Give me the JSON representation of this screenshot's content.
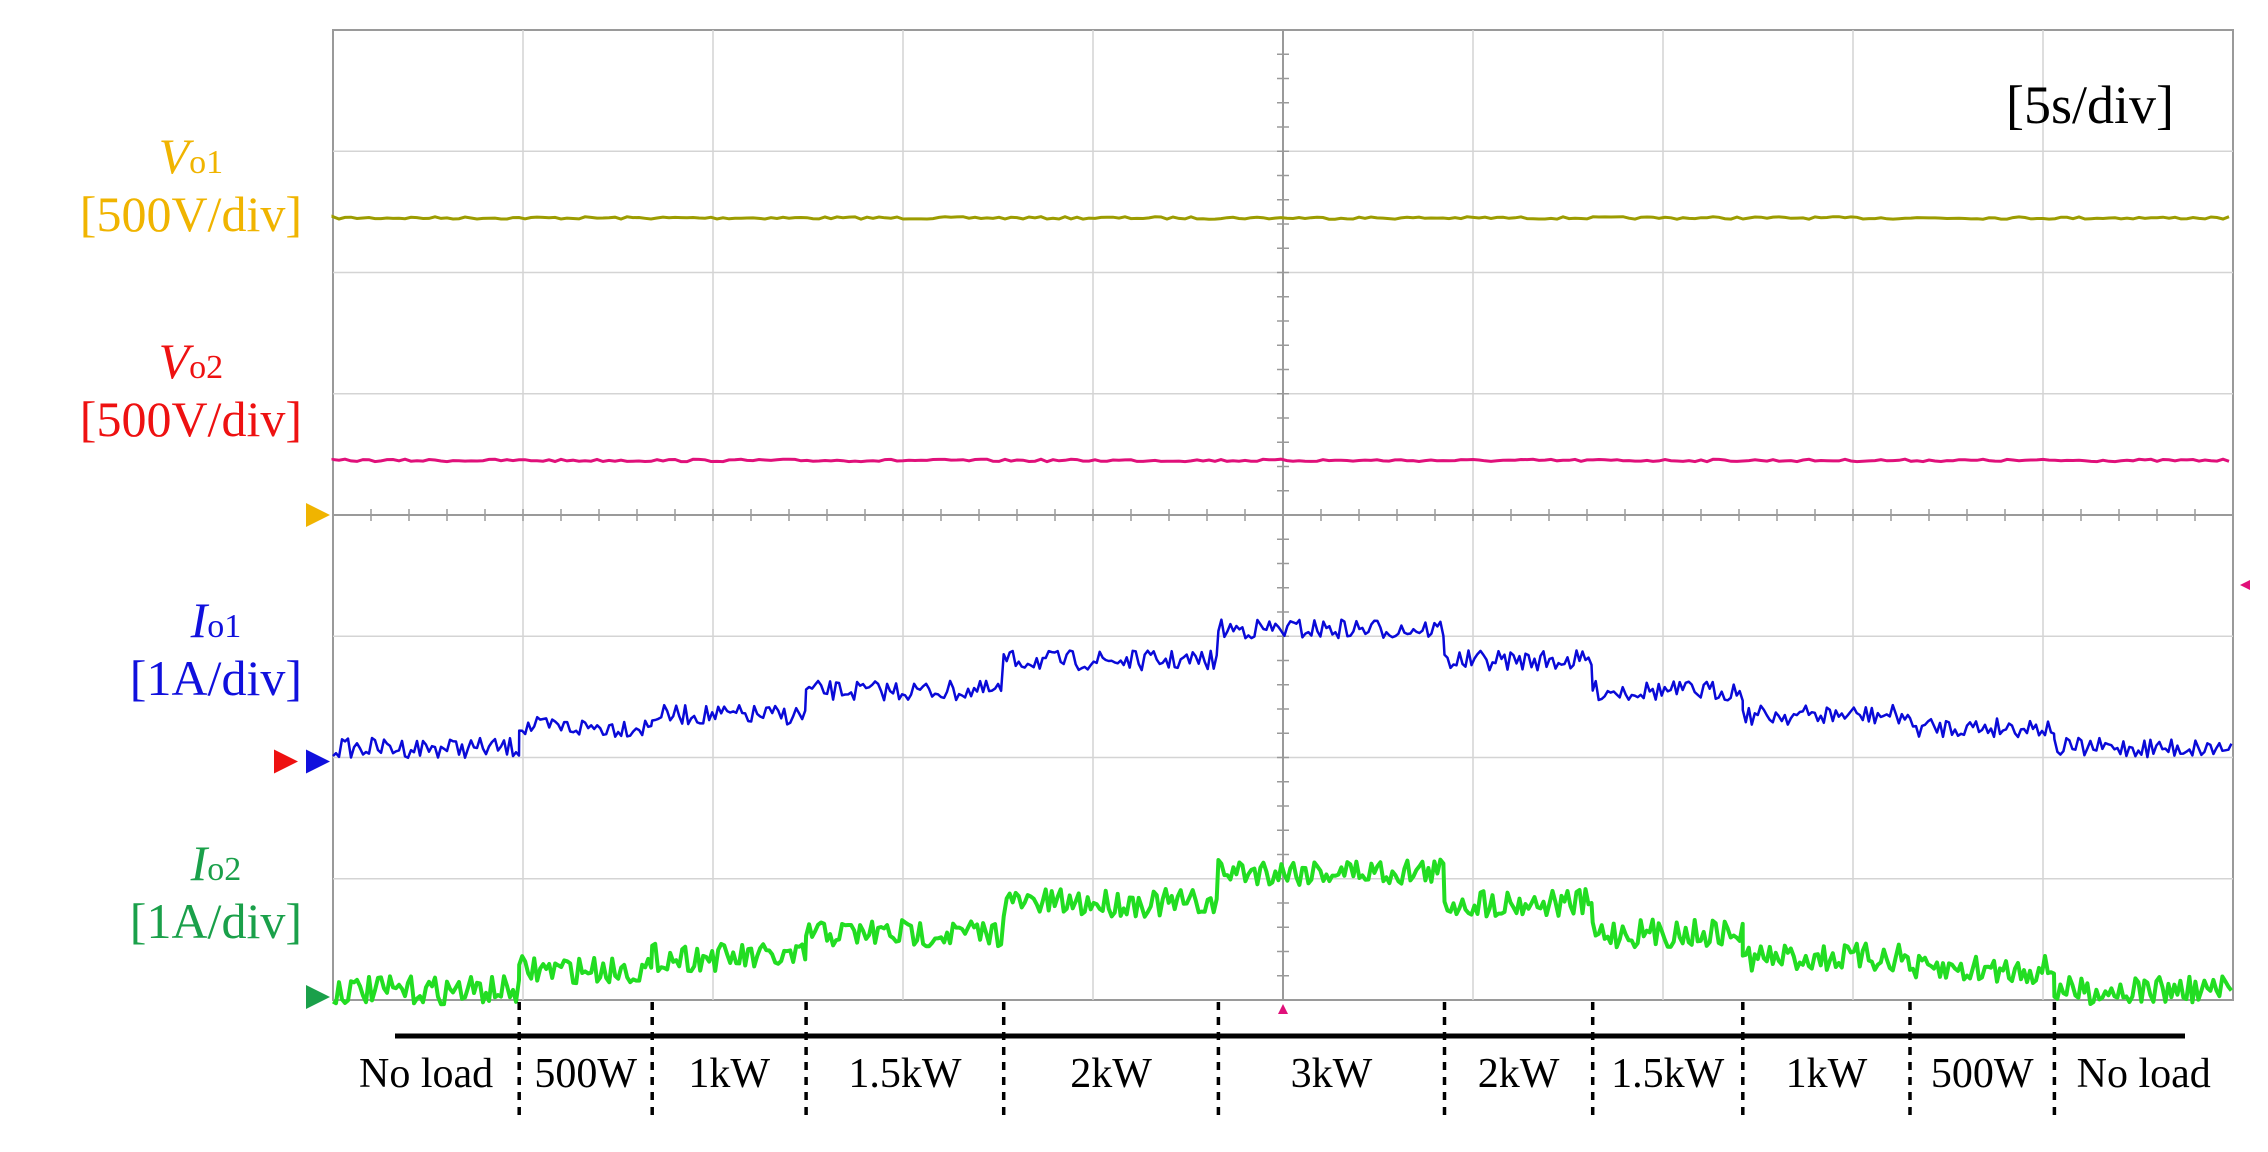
{
  "chart_data": {
    "type": "line",
    "title": "",
    "timebase": "[5s/div]",
    "channels": [
      {
        "key": "vo1",
        "symbol": "V",
        "subscript": "o1",
        "scale": "[500V/div]",
        "color": "#f0b400",
        "trace_color": "#9c9c00",
        "level_div": 2.45
      },
      {
        "key": "vo2",
        "symbol": "V",
        "subscript": "o2",
        "scale": "[500V/div]",
        "color": "#ee1111",
        "trace_color": "#e0107a",
        "level_div": 0.45
      },
      {
        "key": "io1",
        "symbol": "I",
        "subscript": "o1",
        "scale": "[1A/div]",
        "color": "#1010dd",
        "trace_color": "#0a0ad8",
        "marker_div": 0,
        "levels_div": [
          0.08,
          0.25,
          0.35,
          0.55,
          0.8,
          1.06,
          0.8,
          0.55,
          0.35,
          0.25,
          0.08
        ]
      },
      {
        "key": "io2",
        "symbol": "I",
        "subscript": "o2",
        "scale": "[1A/div]",
        "color": "#1aa04a",
        "trace_color": "#22dd22",
        "marker_div": 0,
        "levels_div": [
          0.08,
          0.25,
          0.35,
          0.55,
          0.8,
          1.06,
          0.8,
          0.55,
          0.35,
          0.25,
          0.08
        ]
      }
    ],
    "segments": [
      {
        "label": "No load",
        "t_start_div": 0,
        "t_end_div": 0.98
      },
      {
        "label": "500W",
        "t_start_div": 0.98,
        "t_end_div": 1.68
      },
      {
        "label": "1kW",
        "t_start_div": 1.68,
        "t_end_div": 2.49
      },
      {
        "label": "1.5kW",
        "t_start_div": 2.49,
        "t_end_div": 3.53
      },
      {
        "label": "2kW",
        "t_start_div": 3.53,
        "t_end_div": 4.66
      },
      {
        "label": "3kW",
        "t_start_div": 4.66,
        "t_end_div": 5.85
      },
      {
        "label": "2kW",
        "t_start_div": 5.85,
        "t_end_div": 6.63
      },
      {
        "label": "1.5kW",
        "t_start_div": 6.63,
        "t_end_div": 7.42
      },
      {
        "label": "1kW",
        "t_start_div": 7.42,
        "t_end_div": 8.3
      },
      {
        "label": "500W",
        "t_start_div": 8.3,
        "t_end_div": 9.06
      },
      {
        "label": "No load",
        "t_start_div": 9.06,
        "t_end_div": 10
      }
    ],
    "grid": {
      "x_divisions": 10,
      "y_divisions": 8
    },
    "xlim_div": [
      0,
      10
    ]
  }
}
